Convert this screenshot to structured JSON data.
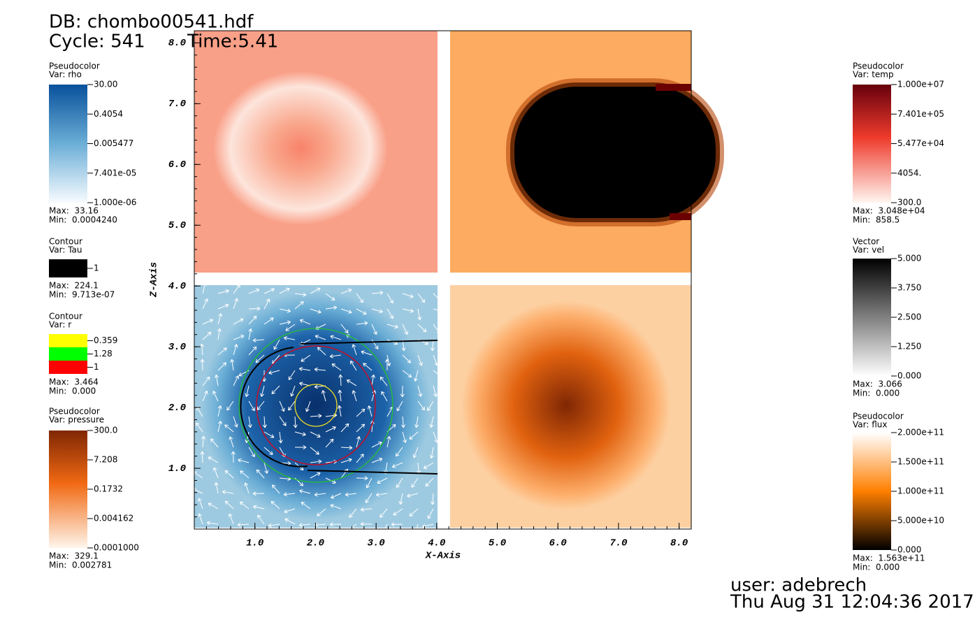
{
  "header": {
    "database": "DB: chombo00541.hdf",
    "cycle": "Cycle: 541",
    "time": "Time:5.41"
  },
  "plot": {
    "x_axis": {
      "label": "X-Axis",
      "range": [
        0,
        8.2
      ],
      "ticks": [
        {
          "value": 1,
          "label": "1.0"
        },
        {
          "value": 2,
          "label": "2.0"
        },
        {
          "value": 3,
          "label": "3.0"
        },
        {
          "value": 4,
          "label": "4.0"
        },
        {
          "value": 5,
          "label": "5.0"
        },
        {
          "value": 6,
          "label": "6.0"
        },
        {
          "value": 7,
          "label": "7.0"
        },
        {
          "value": 8,
          "label": "8.0"
        }
      ]
    },
    "z_axis": {
      "label": "Z-Axis",
      "range": [
        0,
        8.2
      ],
      "ticks": [
        {
          "value": 1,
          "label": "1.0"
        },
        {
          "value": 2,
          "label": "2.0"
        },
        {
          "value": 3,
          "label": "3.0"
        },
        {
          "value": 4,
          "label": "4.0"
        },
        {
          "value": 5,
          "label": "5.0"
        },
        {
          "value": 6,
          "label": "6.0"
        },
        {
          "value": 7,
          "label": "7.0"
        },
        {
          "value": 8,
          "label": "8.0"
        }
      ]
    }
  },
  "legends_left": [
    {
      "plot": "Pseudocolor",
      "var": "Var: rho",
      "labels": [
        "30.00",
        "0.4054",
        "0.005477",
        "7.401e-05",
        "1.000e-06"
      ],
      "max": "Max:  33.16",
      "min": "Min:  0.0004240"
    },
    {
      "plot": "Contour",
      "var": "Var: Tau",
      "labels": [
        "1"
      ],
      "max": "Max:  224.1",
      "min": "Min:  9.713e-07"
    },
    {
      "plot": "Contour",
      "var": "Var: r",
      "labels": [
        "0.359",
        "1.28",
        "1"
      ],
      "max": "Max:  3.464",
      "min": "Min:  0.000"
    },
    {
      "plot": "Pseudocolor",
      "var": "Var: pressure",
      "labels": [
        "300.0",
        "7.208",
        "0.1732",
        "0.004162",
        "0.0001000"
      ],
      "max": "Max:  329.1",
      "min": "Min:  0.002781"
    }
  ],
  "legends_right": [
    {
      "plot": "Pseudocolor",
      "var": "Var: temp",
      "labels": [
        "1.000e+07",
        "7.401e+05",
        "5.477e+04",
        "4054.",
        "300.0"
      ],
      "max": "Max:  3.048e+04",
      "min": "Min:  858.5"
    },
    {
      "plot": "Vector",
      "var": "Var: vel",
      "labels": [
        "5.000",
        "3.750",
        "2.500",
        "1.250",
        "0.000"
      ],
      "max": "Max:  3.066",
      "min": "Min:  0.000"
    },
    {
      "plot": "Pseudocolor",
      "var": "Var: flux",
      "labels": [
        "2.000e+11",
        "1.500e+11",
        "1.000e+11",
        "5.000e+10",
        "0.000"
      ],
      "max": "Max:  1.563e+11",
      "min": "Min:  0.000"
    }
  ],
  "footer": {
    "user": "user: adebrech",
    "timestamp": "Thu Aug 31 12:04:36 2017"
  }
}
